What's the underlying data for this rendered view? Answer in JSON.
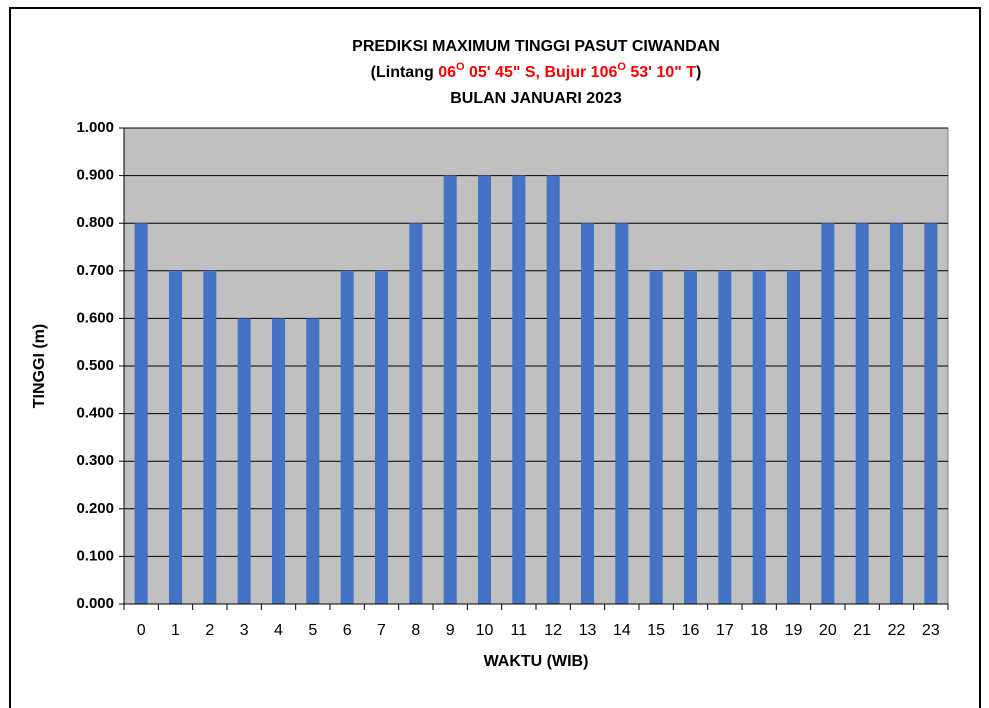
{
  "chart_data": {
    "type": "bar",
    "title": "PREDIKSI MAXIMUM  TINGGI PASUT CIWANDAN",
    "subtitle_parts": [
      {
        "text": "(Lintang ",
        "color": "#000000"
      },
      {
        "text": "06",
        "color": "#ff0000"
      },
      {
        "text": "O",
        "color": "#ff0000",
        "superscript": true
      },
      {
        "text": " 05' 45\" S, Bujur 106",
        "color": "#ff0000"
      },
      {
        "text": "O",
        "color": "#ff0000",
        "superscript": true
      },
      {
        "text": " 53' 10\" T",
        "color": "#ff0000"
      },
      {
        "text": ")",
        "color": "#000000"
      }
    ],
    "title_line3": "BULAN  JANUARI  2023",
    "x_label": "WAKTU (WIB)",
    "y_label": "TINGGI (m)",
    "categories": [
      "0",
      "1",
      "2",
      "3",
      "4",
      "5",
      "6",
      "7",
      "8",
      "9",
      "10",
      "11",
      "12",
      "13",
      "14",
      "15",
      "16",
      "17",
      "18",
      "19",
      "20",
      "21",
      "22",
      "23"
    ],
    "values": [
      0.8,
      0.7,
      0.7,
      0.6,
      0.6,
      0.6,
      0.7,
      0.7,
      0.8,
      0.9,
      0.9,
      0.9,
      0.9,
      0.8,
      0.8,
      0.7,
      0.7,
      0.7,
      0.7,
      0.7,
      0.8,
      0.8,
      0.8,
      0.8
    ],
    "color": "#4472c4",
    "plot_background": "#c0c0c0",
    "ylim": [
      0,
      1
    ],
    "yticks": [
      {
        "value": 0,
        "label": "0.000"
      },
      {
        "value": 0.1,
        "label": "0.100"
      },
      {
        "value": 0.2,
        "label": "0.200"
      },
      {
        "value": 0.3,
        "label": "0.300"
      },
      {
        "value": 0.4,
        "label": "0.400"
      },
      {
        "value": 0.5,
        "label": "0.500"
      },
      {
        "value": 0.6,
        "label": "0.600"
      },
      {
        "value": 0.7,
        "label": "0.700"
      },
      {
        "value": 0.8,
        "label": "0.800"
      },
      {
        "value": 0.9,
        "label": "0.900"
      },
      {
        "value": 1,
        "label": "1.000"
      }
    ],
    "grid": true
  }
}
